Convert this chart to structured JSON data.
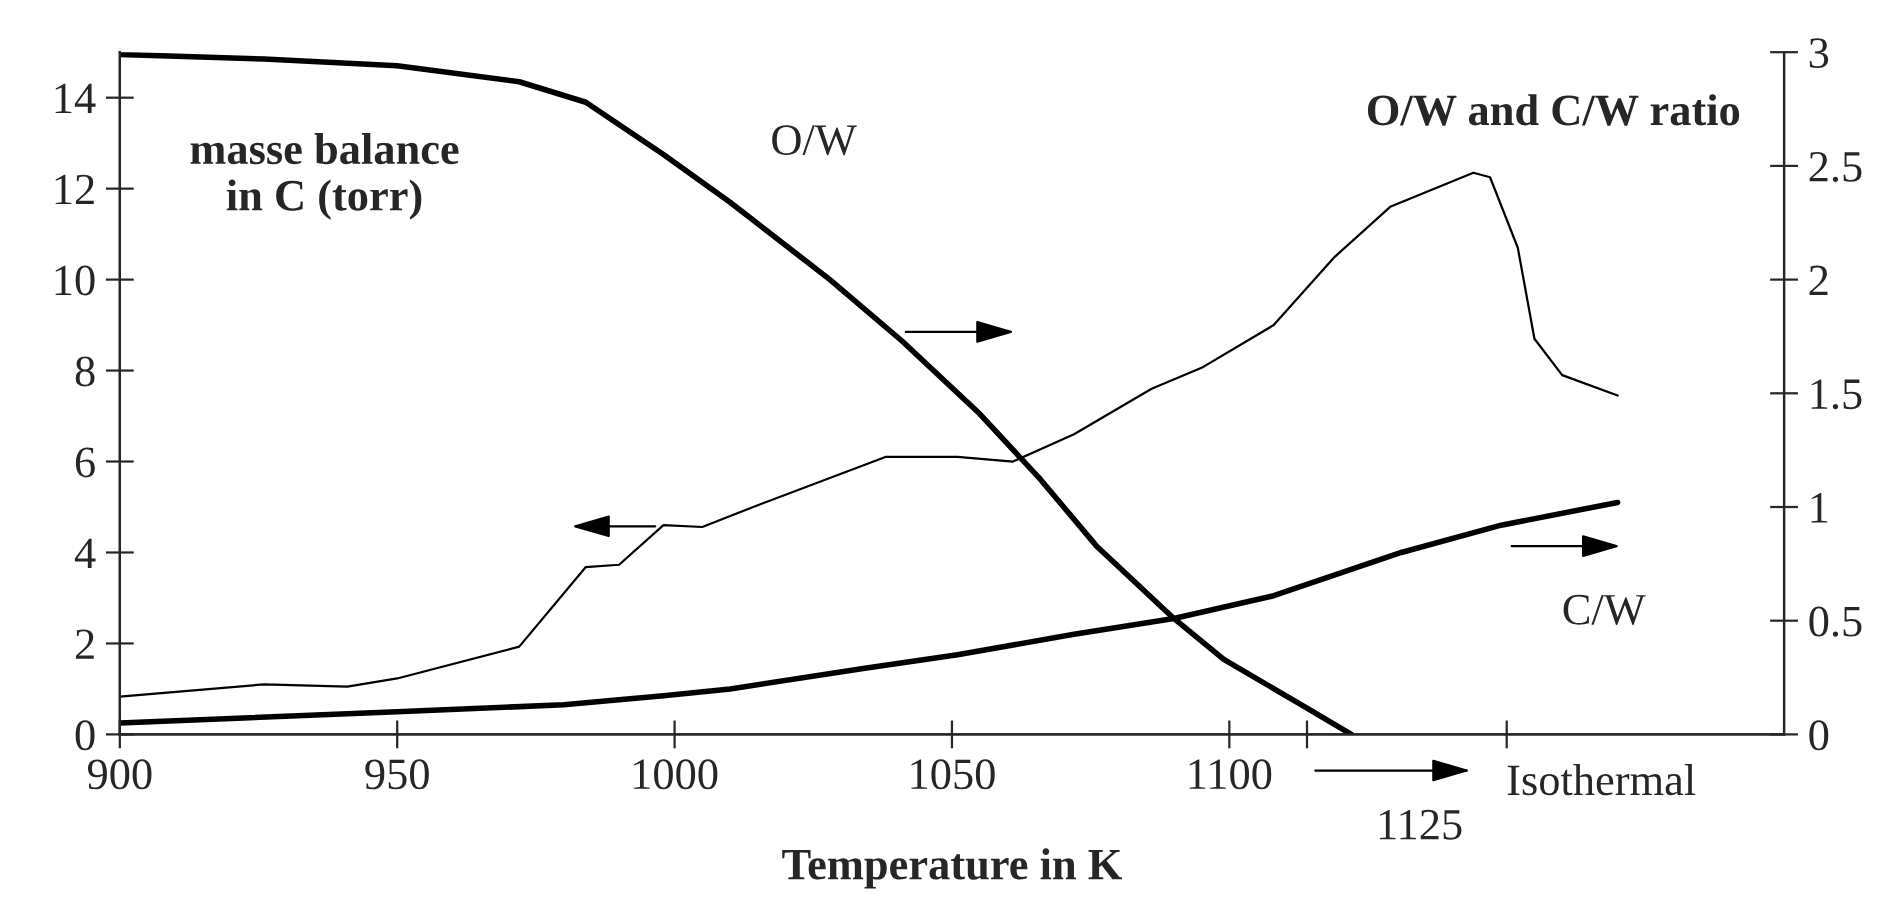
{
  "chart_data": {
    "type": "line",
    "xlabel": "Temperature in K",
    "ylabel": "masse balance\nin C (torr)",
    "y2label": "O/W and C/W ratio",
    "xlim": [
      900,
      1200
    ],
    "xticks": [
      900,
      950,
      1000,
      1050,
      1100,
      {
        "value": 1114,
        "label": null
      },
      {
        "value": 1150,
        "label": null
      }
    ],
    "ylim": [
      0,
      15
    ],
    "yticks": [
      0,
      2,
      4,
      6,
      8,
      10,
      12,
      14
    ],
    "y2lim": [
      0,
      3
    ],
    "y2ticks": [
      0,
      0.5,
      1,
      1.5,
      2,
      2.5,
      3
    ],
    "grid": false,
    "marker": "none",
    "line_style": "solid",
    "annotations": [
      "1125",
      "Isothermal"
    ],
    "series": [
      {
        "x": [
          900,
          926,
          941,
          950,
          972,
          984,
          990,
          998,
          1005,
          1015,
          1038,
          1051,
          1061,
          1072,
          1086,
          1095,
          1108,
          1119,
          1129,
          1144,
          1147,
          1152,
          1155,
          1160,
          1170
        ],
        "color": "#000000",
        "values": [
          0.83,
          1.1,
          1.05,
          1.23,
          1.93,
          3.68,
          3.73,
          4.6,
          4.56,
          5.04,
          6.1,
          6.1,
          6.0,
          6.6,
          7.6,
          8.06,
          9.0,
          10.5,
          11.6,
          12.35,
          12.25,
          10.7,
          8.7,
          7.9,
          7.45
        ]
      },
      {
        "name": "O/W",
        "axis": "y2",
        "x": [
          900,
          926,
          950,
          972,
          984,
          998,
          1010,
          1028,
          1041,
          1055,
          1066,
          1076,
          1090,
          1099,
          1113,
          1122
        ],
        "color": "#000000",
        "values": [
          2.99,
          2.97,
          2.94,
          2.87,
          2.78,
          2.55,
          2.34,
          2.0,
          1.73,
          1.41,
          1.12,
          0.83,
          0.51,
          0.33,
          0.13,
          0.0
        ]
      },
      {
        "name": "C/W",
        "axis": "y2",
        "x": [
          900,
          950,
          980,
          998,
          1010,
          1034,
          1051,
          1072,
          1090,
          1108,
          1131,
          1149,
          1170
        ],
        "color": "#000000",
        "values": [
          0.05,
          0.1,
          0.13,
          0.17,
          0.2,
          0.29,
          0.35,
          0.44,
          0.51,
          0.61,
          0.8,
          0.92,
          1.02
        ]
      }
    ]
  }
}
